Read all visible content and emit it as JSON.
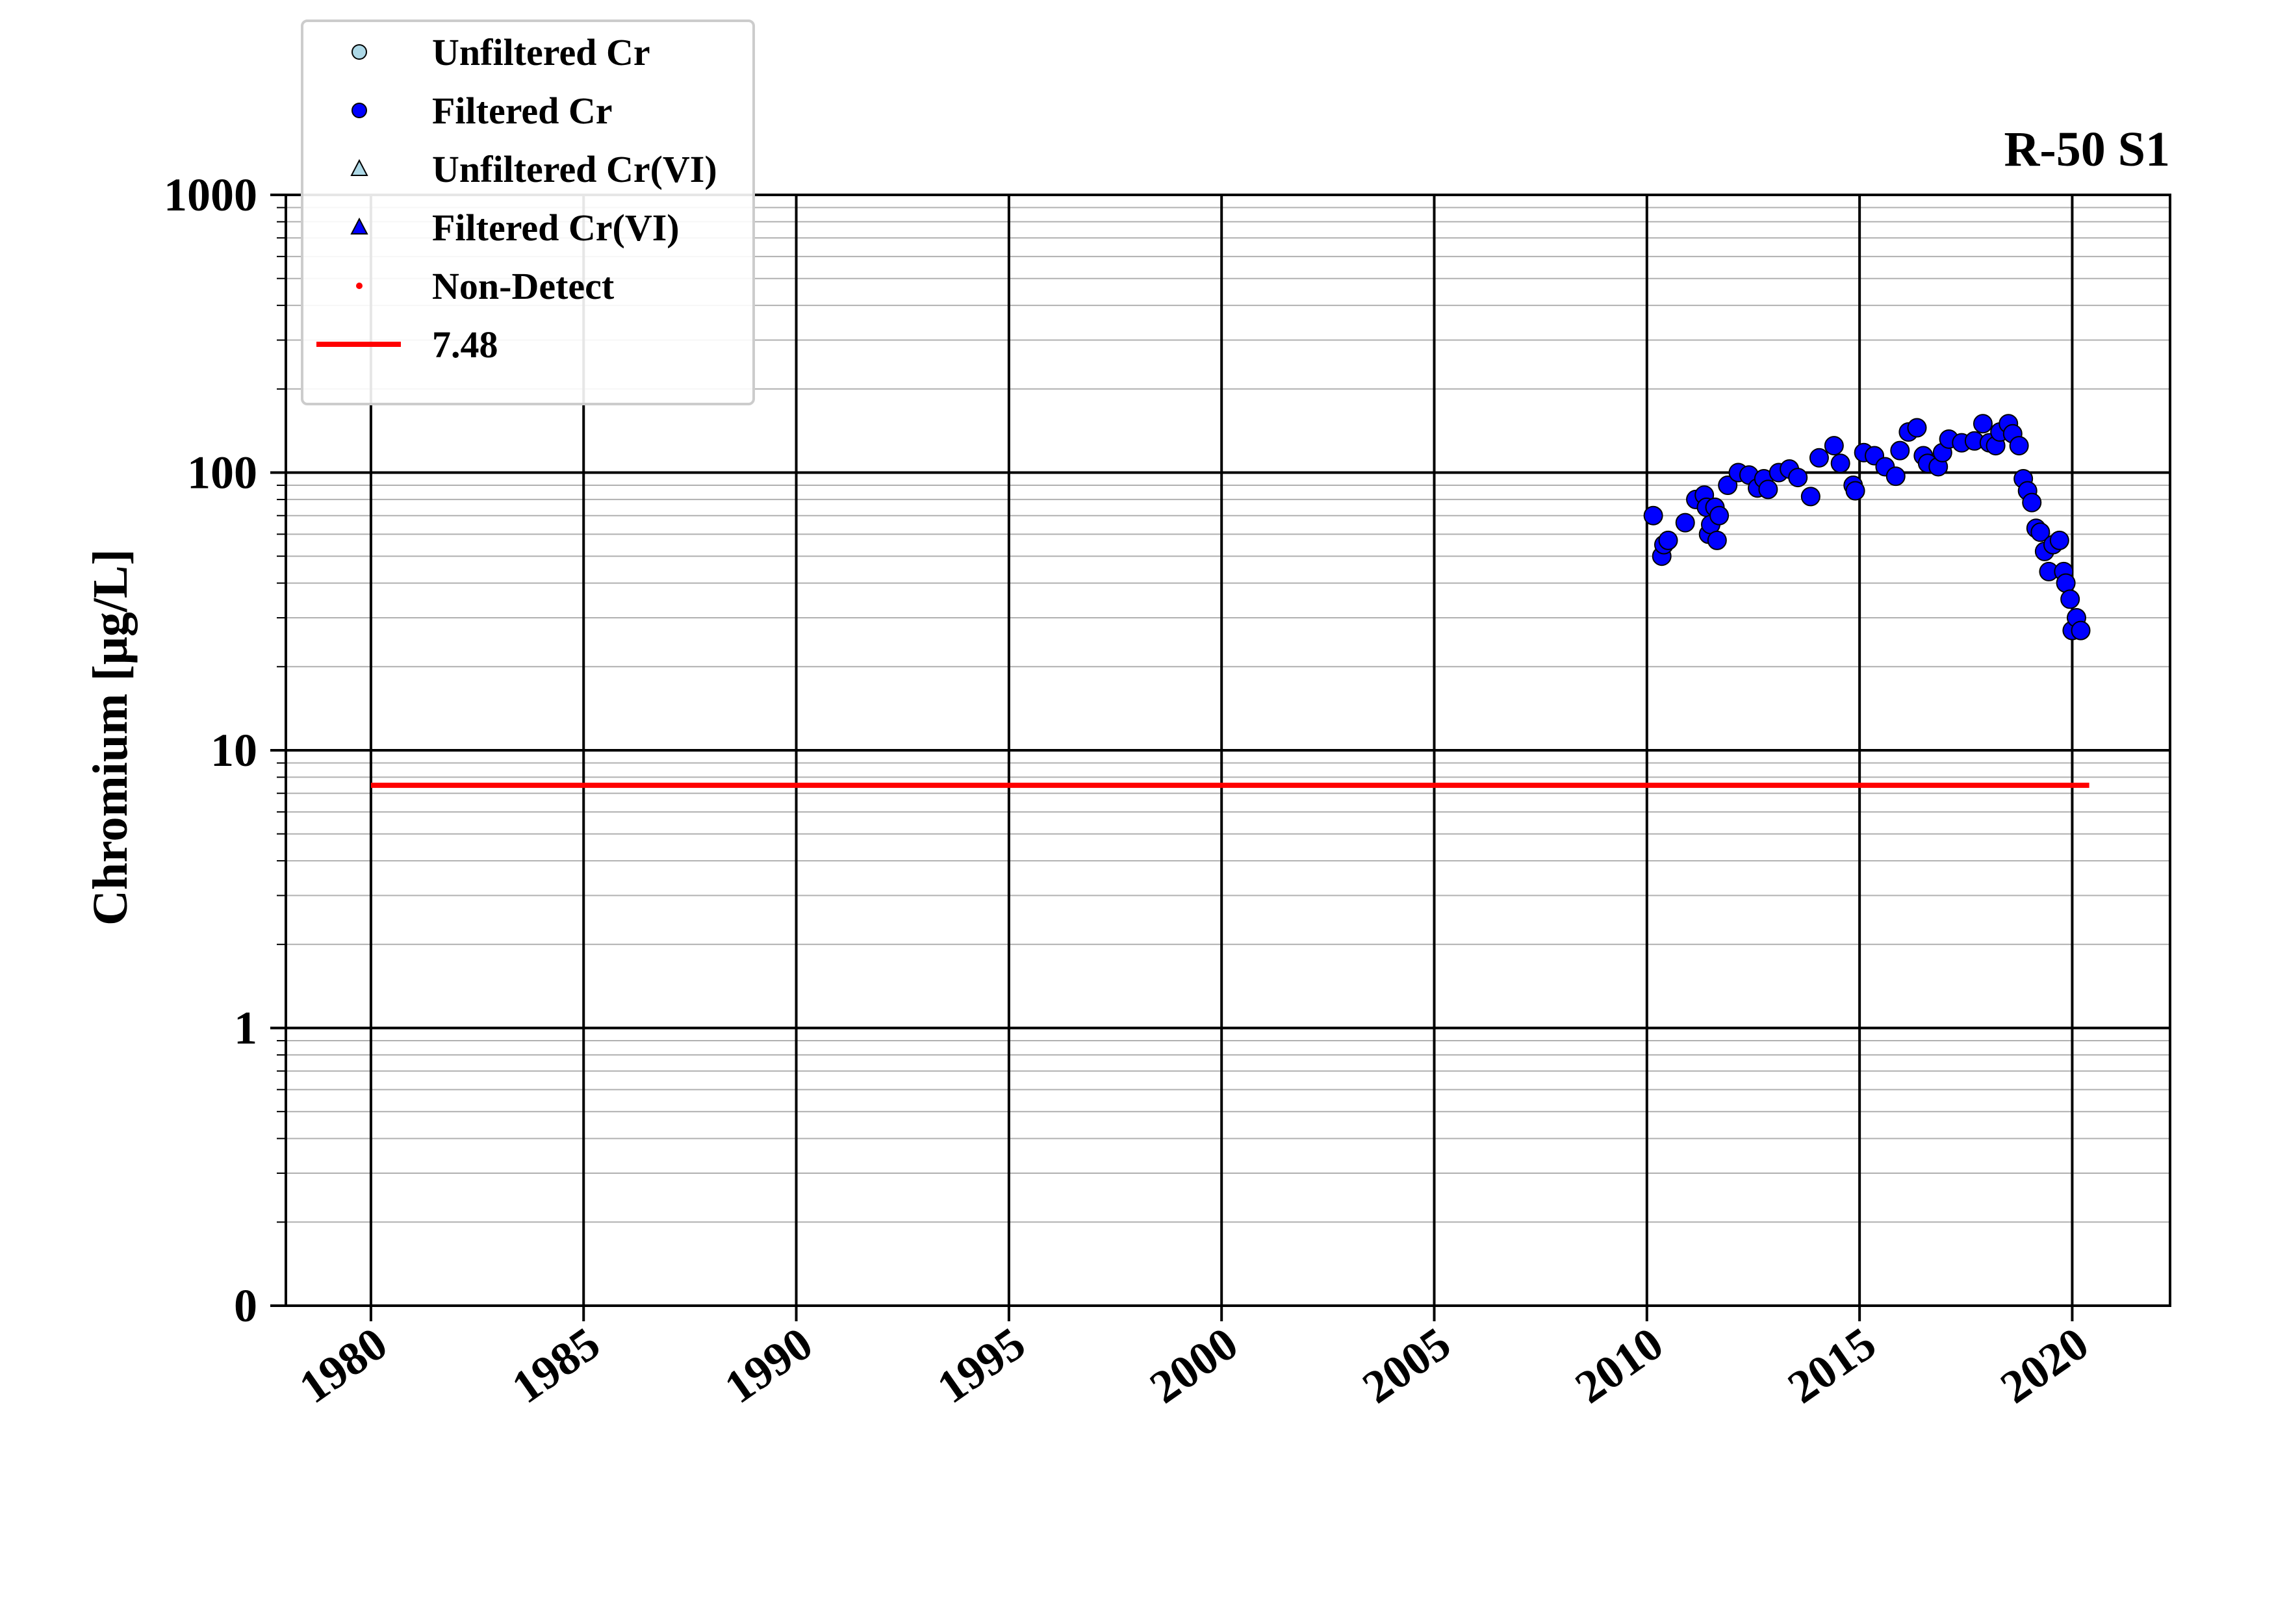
{
  "chart_data": {
    "type": "scatter",
    "title": "R-50 S1",
    "ylabel": "Chromium [μg/L]",
    "xlabel": "",
    "xlim": [
      1978.0,
      2022.3
    ],
    "ylim": [
      0.1,
      1000
    ],
    "yscale": "log",
    "grid": true,
    "legend_position": "top-left",
    "x_ticks": [
      1980,
      1985,
      1990,
      1995,
      2000,
      2005,
      2010,
      2015,
      2020
    ],
    "y_ticks": [
      {
        "value": 0.1,
        "label": "0"
      },
      {
        "value": 1,
        "label": "1"
      },
      {
        "value": 10,
        "label": "10"
      },
      {
        "value": 100,
        "label": "100"
      },
      {
        "value": 1000,
        "label": "1000"
      }
    ],
    "legend": [
      {
        "label": "Unfiltered Cr",
        "marker": "circle",
        "color": "#add8e6"
      },
      {
        "label": "Filtered Cr",
        "marker": "circle",
        "color": "#0000ff"
      },
      {
        "label": "Unfiltered Cr(VI)",
        "marker": "triangle",
        "color": "#add8e6"
      },
      {
        "label": "Filtered Cr(VI)",
        "marker": "triangle",
        "color": "#0000ff"
      },
      {
        "label": "Non-Detect",
        "marker": "dot",
        "color": "#ff0000"
      },
      {
        "label": "7.48",
        "marker": "line",
        "color": "#ff0000"
      }
    ],
    "series": [
      {
        "name": "Filtered Cr",
        "marker": "circle",
        "color": "#0000ff",
        "points": [
          [
            2010.15,
            70
          ],
          [
            2010.35,
            50
          ],
          [
            2010.4,
            55
          ],
          [
            2010.5,
            57
          ],
          [
            2010.9,
            66
          ],
          [
            2011.15,
            80
          ],
          [
            2011.35,
            83
          ],
          [
            2011.4,
            75
          ],
          [
            2011.45,
            60
          ],
          [
            2011.5,
            65
          ],
          [
            2011.6,
            75
          ],
          [
            2011.65,
            57
          ],
          [
            2011.7,
            70
          ],
          [
            2011.9,
            90
          ],
          [
            2012.15,
            100
          ],
          [
            2012.4,
            98
          ],
          [
            2012.6,
            88
          ],
          [
            2012.75,
            95
          ],
          [
            2012.85,
            87
          ],
          [
            2013.1,
            100
          ],
          [
            2013.35,
            103
          ],
          [
            2013.55,
            96
          ],
          [
            2013.85,
            82
          ],
          [
            2014.05,
            113
          ],
          [
            2014.4,
            125
          ],
          [
            2014.55,
            108
          ],
          [
            2014.85,
            90
          ],
          [
            2014.9,
            86
          ],
          [
            2015.1,
            118
          ],
          [
            2015.35,
            115
          ],
          [
            2015.6,
            105
          ],
          [
            2015.85,
            97
          ],
          [
            2015.95,
            120
          ],
          [
            2016.15,
            140
          ],
          [
            2016.35,
            145
          ],
          [
            2016.5,
            115
          ],
          [
            2016.6,
            108
          ],
          [
            2016.85,
            105
          ],
          [
            2016.95,
            118
          ],
          [
            2017.1,
            132
          ],
          [
            2017.4,
            128
          ],
          [
            2017.7,
            130
          ],
          [
            2017.9,
            150
          ],
          [
            2018.05,
            128
          ],
          [
            2018.2,
            125
          ],
          [
            2018.3,
            140
          ],
          [
            2018.5,
            150
          ],
          [
            2018.6,
            138
          ],
          [
            2018.75,
            125
          ],
          [
            2018.85,
            95
          ],
          [
            2018.95,
            86
          ],
          [
            2019.05,
            78
          ],
          [
            2019.15,
            63
          ],
          [
            2019.25,
            61
          ],
          [
            2019.35,
            52
          ],
          [
            2019.45,
            44
          ],
          [
            2019.55,
            55
          ],
          [
            2019.7,
            57
          ],
          [
            2019.8,
            44
          ],
          [
            2019.85,
            40
          ],
          [
            2019.95,
            35
          ],
          [
            2020.0,
            27
          ],
          [
            2020.1,
            30
          ],
          [
            2020.2,
            27
          ]
        ]
      }
    ],
    "threshold": {
      "label": "7.48",
      "value": 7.48,
      "x_start": 1980.0,
      "x_end": 2020.4,
      "color": "#ff0000"
    }
  }
}
